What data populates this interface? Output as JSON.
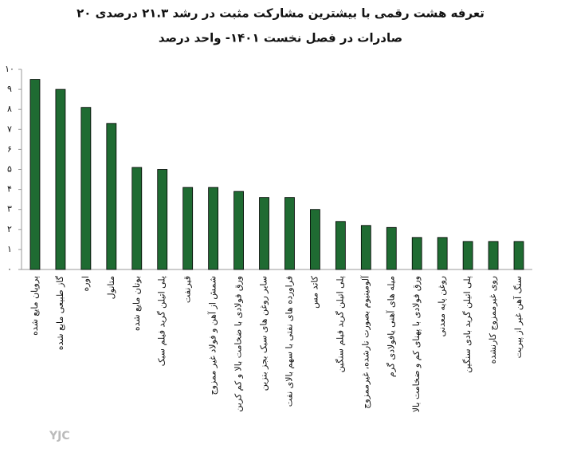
{
  "chart_data": {
    "type": "bar",
    "title": "۲۰ تعرفه هشت رقمی با بیشترین مشارکت مثبت در رشد ۲۱.۳ درصدی",
    "subtitle": "صادرات در فصل نخست ۱۴۰۱- واحد درصد",
    "categories": [
      "پروپان مایع شده",
      "گاز طبیعی مایع شده",
      "اوره",
      "متانول",
      "بوتان مایع شده",
      "پلی اتیلن گرید فیلم سبک",
      "قیرنفت",
      "شمش از آهن و فولاد غیر ممزوج",
      "ورق فولادی با ضخامت بالا و کم کربن",
      "سایر روغن های سبک بجز بنزین",
      "فراورده های نفتی با سهم بالای نفت",
      "کاتد مس",
      "پلی اتیلن گرید فیلم سنگین",
      "آلومینیوم بصورت نارشده، غیرممزوج",
      "میله های آهنی یافولادی گرم",
      "ورق فولادی با پهنای کم و ضخامت بالا",
      "روغن پایه معدنی",
      "پلی اتیلن گرید بادی سنگین",
      "روی غیرممزوج کارنشده",
      "سنگ آهن غیر از پیریت"
    ],
    "values": [
      9.5,
      9.0,
      8.1,
      7.3,
      5.1,
      5.0,
      4.1,
      4.1,
      3.9,
      3.6,
      3.6,
      3.0,
      2.4,
      2.2,
      2.1,
      1.6,
      1.6,
      1.4,
      1.4,
      1.4
    ],
    "color": "#1f6b32",
    "ylim": [
      0,
      10
    ],
    "yticks": [
      {
        "value": 0,
        "label": "۰"
      },
      {
        "value": 1,
        "label": "۱"
      },
      {
        "value": 2,
        "label": "۲"
      },
      {
        "value": 3,
        "label": "۳"
      },
      {
        "value": 4,
        "label": "۴"
      },
      {
        "value": 5,
        "label": "۵"
      },
      {
        "value": 6,
        "label": "۶"
      },
      {
        "value": 7,
        "label": "۷"
      },
      {
        "value": 8,
        "label": "۸"
      },
      {
        "value": 9,
        "label": "۹"
      },
      {
        "value": 10,
        "label": "۱۰"
      }
    ],
    "grid": false,
    "watermark": "YJC"
  }
}
